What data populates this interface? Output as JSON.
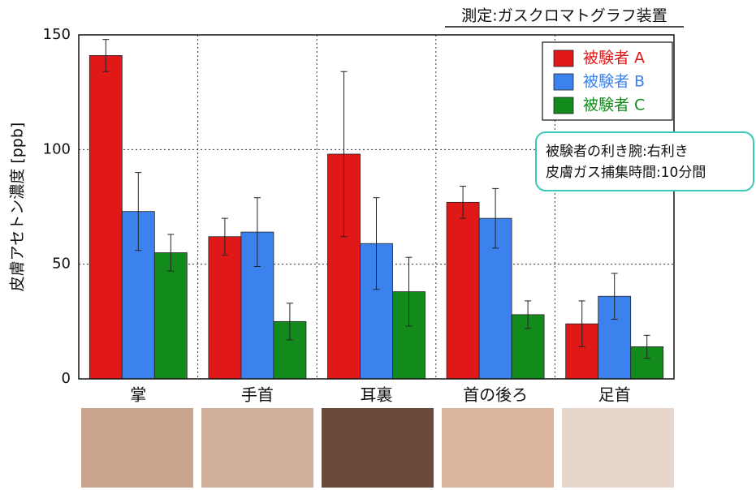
{
  "chart_data": {
    "type": "bar",
    "title": "測定:ガスクロマトグラフ装置",
    "y_label": "皮膚アセトン濃度 [ppb]",
    "categories": [
      "掌",
      "手首",
      "耳裏",
      "首の後ろ",
      "足首"
    ],
    "series": [
      {
        "name": "被験者 A",
        "color": "#e01818",
        "values": [
          141,
          62,
          98,
          77,
          24
        ],
        "errors": [
          7,
          8,
          36,
          7,
          10
        ]
      },
      {
        "name": "被験者 B",
        "color": "#3c82ee",
        "values": [
          73,
          64,
          59,
          70,
          36
        ],
        "errors": [
          17,
          15,
          20,
          13,
          10
        ]
      },
      {
        "name": "被験者 C",
        "color": "#138a1c",
        "values": [
          55,
          25,
          38,
          28,
          14
        ],
        "errors": [
          8,
          8,
          15,
          6,
          5
        ]
      }
    ],
    "ylim": [
      0,
      150
    ],
    "yticks": [
      0,
      50,
      100,
      150
    ],
    "grid": true,
    "legend": "upper right",
    "annotation_lines": [
      "被験者の利き腕:右利き",
      "皮膚ガス捕集時間:10分間"
    ]
  }
}
